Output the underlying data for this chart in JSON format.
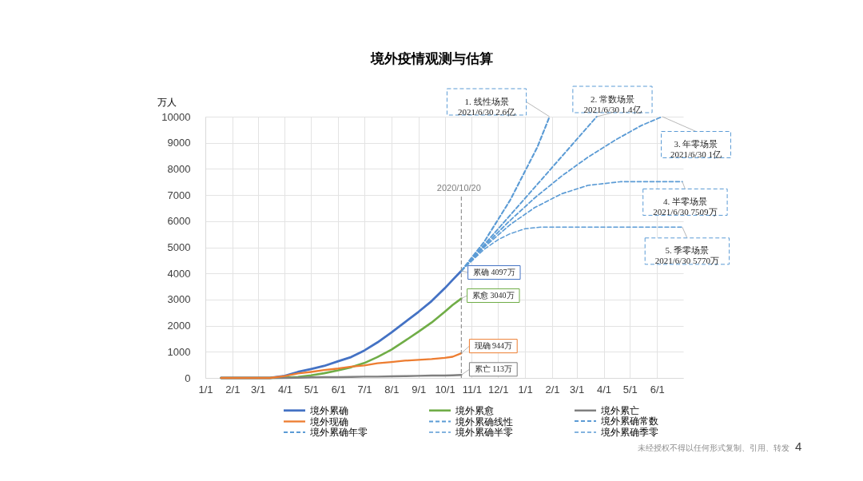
{
  "chart_data": {
    "type": "line",
    "title": "境外疫情观测与估算",
    "ylabel": "万人",
    "line_style": "solid",
    "legend": "bottom",
    "grid": true,
    "xlim": [
      "2020-01-01",
      "2021-07-01"
    ],
    "xticks": [
      {
        "value": "2020-01-01",
        "label": "1/1"
      },
      {
        "value": "2020-02-01",
        "label": "2/1"
      },
      {
        "value": "2020-03-01",
        "label": "3/1"
      },
      {
        "value": "2020-04-01",
        "label": "4/1"
      },
      {
        "value": "2020-05-01",
        "label": "5/1"
      },
      {
        "value": "2020-06-01",
        "label": "6/1"
      },
      {
        "value": "2020-07-01",
        "label": "7/1"
      },
      {
        "value": "2020-08-01",
        "label": "8/1"
      },
      {
        "value": "2020-09-01",
        "label": "9/1"
      },
      {
        "value": "2020-10-01",
        "label": "10/1"
      },
      {
        "value": "2020-11-01",
        "label": "11/1"
      },
      {
        "value": "2020-12-01",
        "label": "12/1"
      },
      {
        "value": "2021-01-01",
        "label": "1/1"
      },
      {
        "value": "2021-02-01",
        "label": "2/1"
      },
      {
        "value": "2021-03-01",
        "label": "3/1"
      },
      {
        "value": "2021-04-01",
        "label": "4/1"
      },
      {
        "value": "2021-05-01",
        "label": "5/1"
      },
      {
        "value": "2021-06-01",
        "label": "6/1"
      }
    ],
    "ylim": [
      0,
      10000
    ],
    "yticks": [
      0,
      1000,
      2000,
      3000,
      4000,
      5000,
      6000,
      7000,
      8000,
      9000,
      10000
    ],
    "series": [
      {
        "name": "境外累确",
        "color": "#4472c4",
        "x": [
          "2020-01-19",
          "2020-03-15",
          "2020-04-01",
          "2020-04-16",
          "2020-05-01",
          "2020-05-16",
          "2020-06-01",
          "2020-06-16",
          "2020-07-01",
          "2020-07-16",
          "2020-08-01",
          "2020-08-16",
          "2020-09-01",
          "2020-09-16",
          "2020-10-01",
          "2020-10-10",
          "2020-10-20"
        ],
        "values": [
          0,
          0,
          80,
          230,
          340,
          460,
          640,
          800,
          1050,
          1360,
          1740,
          2120,
          2530,
          2940,
          3430,
          3750,
          4097
        ]
      },
      {
        "name": "境外累愈",
        "color": "#70ad47",
        "x": [
          "2020-01-19",
          "2020-03-15",
          "2020-04-01",
          "2020-04-16",
          "2020-05-01",
          "2020-05-16",
          "2020-06-01",
          "2020-06-16",
          "2020-07-01",
          "2020-07-16",
          "2020-08-01",
          "2020-08-16",
          "2020-09-01",
          "2020-09-16",
          "2020-10-01",
          "2020-10-10",
          "2020-10-20"
        ],
        "values": [
          0,
          0,
          10,
          40,
          100,
          180,
          290,
          410,
          570,
          800,
          1080,
          1410,
          1770,
          2120,
          2530,
          2790,
          3040
        ]
      },
      {
        "name": "境外累亡",
        "color": "#7f7f7f",
        "x": [
          "2020-01-19",
          "2020-03-15",
          "2020-04-01",
          "2020-04-16",
          "2020-05-01",
          "2020-05-16",
          "2020-06-01",
          "2020-06-16",
          "2020-07-01",
          "2020-07-16",
          "2020-08-01",
          "2020-08-16",
          "2020-09-01",
          "2020-09-16",
          "2020-10-01",
          "2020-10-10",
          "2020-10-20"
        ],
        "values": [
          0,
          0,
          0,
          10,
          20,
          30,
          30,
          40,
          50,
          50,
          60,
          70,
          80,
          90,
          90,
          100,
          113
        ]
      },
      {
        "name": "境外现确",
        "color": "#ed7d31",
        "x": [
          "2020-01-19",
          "2020-03-15",
          "2020-04-01",
          "2020-04-16",
          "2020-05-01",
          "2020-05-16",
          "2020-06-01",
          "2020-06-16",
          "2020-07-01",
          "2020-07-16",
          "2020-08-01",
          "2020-08-16",
          "2020-09-01",
          "2020-09-16",
          "2020-10-01",
          "2020-10-10",
          "2020-10-20"
        ],
        "values": [
          0,
          0,
          70,
          170,
          230,
          300,
          360,
          430,
          480,
          560,
          610,
          660,
          690,
          720,
          770,
          810,
          944
        ]
      },
      {
        "name": "境外累确线性",
        "color": "#5b9bd5",
        "line_style": "dashed",
        "x": [
          "2020-10-20",
          "2020-11-15",
          "2020-12-15",
          "2021-01-15",
          "2021-01-29"
        ],
        "values": [
          4097,
          5200,
          6810,
          8830,
          10000
        ]
      },
      {
        "name": "境外累确常数",
        "color": "#5b9bd5",
        "line_style": "dashed",
        "x": [
          "2020-10-20",
          "2020-12-01",
          "2021-01-15",
          "2021-02-15",
          "2021-03-24"
        ],
        "values": [
          4097,
          5700,
          7410,
          8590,
          10000
        ]
      },
      {
        "name": "境外累确年零",
        "color": "#5b9bd5",
        "line_style": "dashed",
        "x": [
          "2020-10-20",
          "2020-11-15",
          "2020-12-13",
          "2021-01-12",
          "2021-02-12",
          "2021-03-14",
          "2021-04-14",
          "2021-05-14",
          "2021-06-07"
        ],
        "values": [
          4097,
          5040,
          5970,
          6890,
          7730,
          8450,
          9100,
          9660,
          10000
        ]
      },
      {
        "name": "境外累确半零",
        "color": "#5b9bd5",
        "line_style": "dashed",
        "x": [
          "2020-10-20",
          "2020-11-15",
          "2020-12-15",
          "2021-01-12",
          "2021-02-12",
          "2021-03-14",
          "2021-04-20",
          "2021-06-30"
        ],
        "values": [
          4097,
          5000,
          5870,
          6520,
          7050,
          7370,
          7509,
          7509
        ]
      },
      {
        "name": "境外累确季零",
        "color": "#5b9bd5",
        "line_style": "dashed",
        "x": [
          "2020-10-20",
          "2020-11-15",
          "2020-12-01",
          "2020-12-15",
          "2021-01-01",
          "2021-01-19",
          "2021-06-30"
        ],
        "values": [
          4097,
          4920,
          5290,
          5520,
          5710,
          5770,
          5770
        ]
      }
    ],
    "ref_lines": [
      {
        "axis": "x",
        "value": "2020-10-20",
        "label": "2020/10/20",
        "color": "#7f7f7f",
        "line_style": "dashed"
      }
    ],
    "annotations": [
      {
        "text": "累确 4097万",
        "x": "2020-10-20",
        "y": 4097
      },
      {
        "text": "累愈 3040万",
        "x": "2020-10-20",
        "y": 3040
      },
      {
        "text": "现确 944万",
        "x": "2020-10-20",
        "y": 944
      },
      {
        "text": "累亡 113万",
        "x": "2020-10-20",
        "y": 113
      },
      {
        "text": "1. 线性场景\n2021/6/30 2.6亿",
        "x": "2021-01-29",
        "y": 10000
      },
      {
        "text": "2. 常数场景\n2021/6/30 1.4亿",
        "x": "2021-03-24",
        "y": 10000
      },
      {
        "text": "3. 年零场景\n2021/6/30 1亿",
        "x": "2021-06-07",
        "y": 10000
      },
      {
        "text": "4. 半零场景\n2021/6/30 7509万",
        "x": "2021-06-30",
        "y": 7509
      },
      {
        "text": "5. 季零场景\n2021/6/30 5770万",
        "x": "2021-06-30",
        "y": 5770
      },
      "未经授权不得以任何形式复制、引用、转发",
      "4"
    ]
  }
}
